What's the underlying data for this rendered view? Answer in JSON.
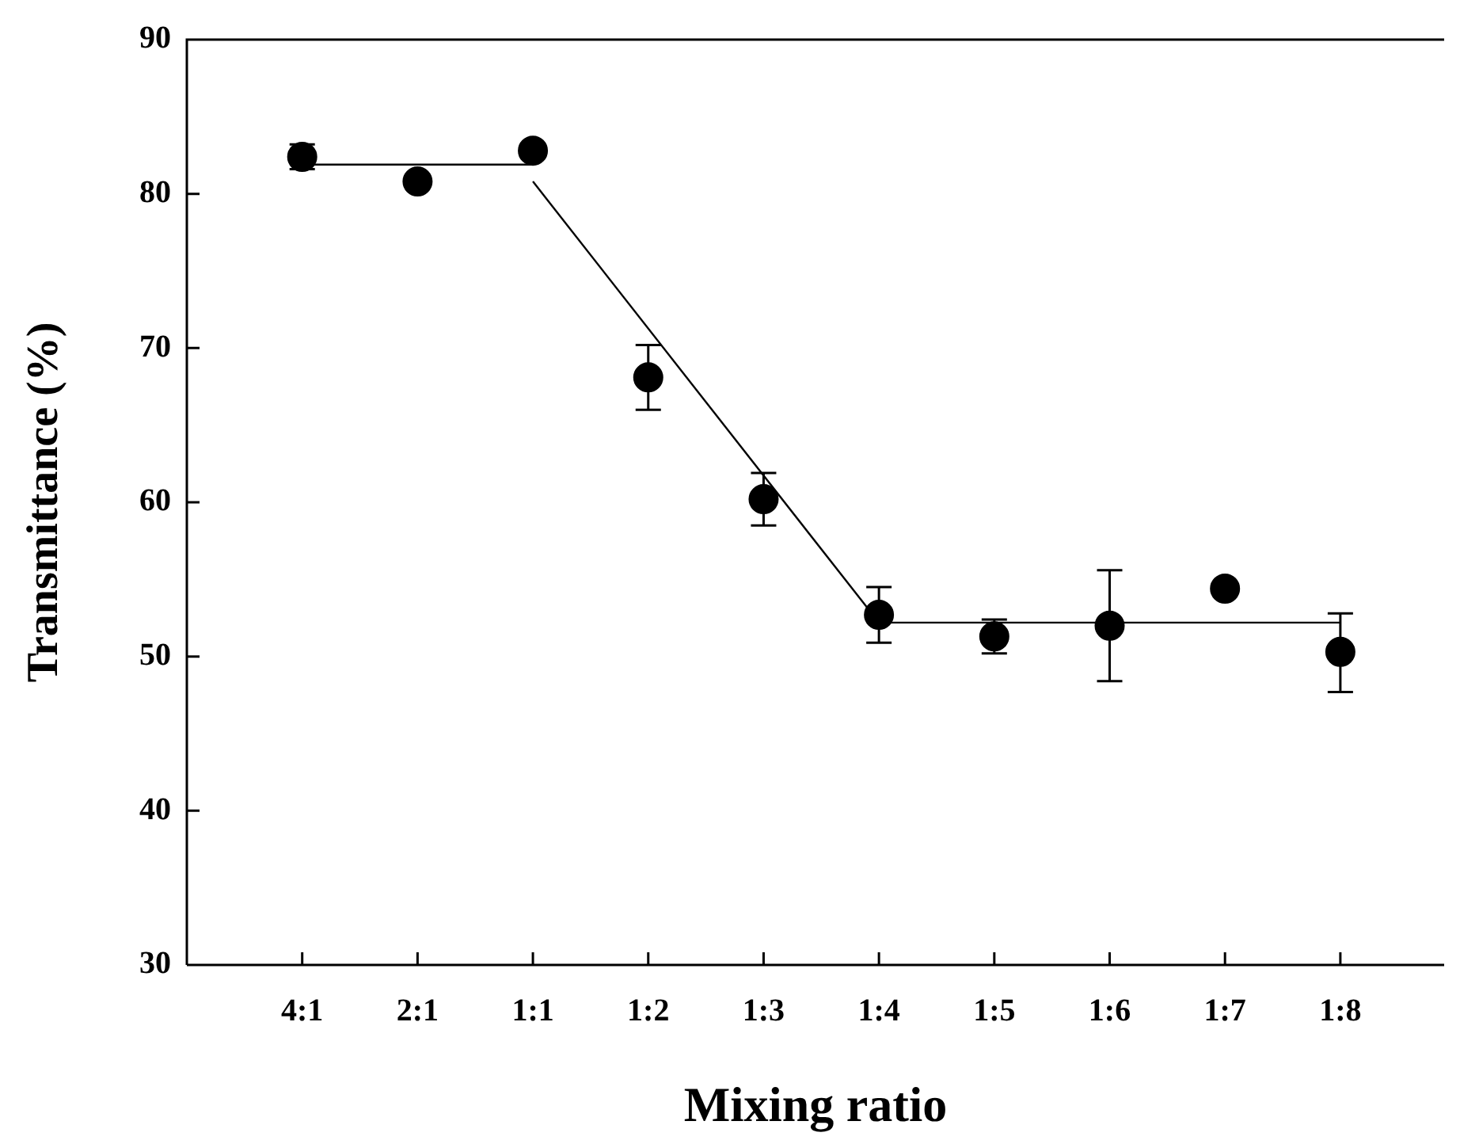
{
  "chart_data": {
    "type": "scatter",
    "xlabel": "Mixing ratio",
    "ylabel": "Transmittance (%)",
    "categories": [
      "4:1",
      "2:1",
      "1:1",
      "1:2",
      "1:3",
      "1:4",
      "1:5",
      "1:6",
      "1:7",
      "1:8"
    ],
    "ylim": [
      30,
      90
    ],
    "yticks": [
      30,
      40,
      50,
      60,
      70,
      80,
      90
    ],
    "grid": false,
    "legend": false,
    "marker": "circle",
    "series": [
      {
        "color": "#000000",
        "values": [
          82.4,
          80.8,
          82.8,
          68.1,
          60.2,
          52.7,
          51.3,
          52.0,
          54.4,
          50.3
        ],
        "errors": [
          [
            81.6,
            83.2
          ],
          null,
          null,
          [
            66.0,
            70.2
          ],
          [
            58.5,
            61.9
          ],
          [
            50.9,
            54.5
          ],
          [
            50.2,
            52.4
          ],
          [
            48.4,
            55.6
          ],
          null,
          [
            47.7,
            52.8
          ]
        ]
      },
      {
        "type": "line",
        "marker": "none",
        "color": "#000000",
        "x": [
          "4:1",
          "1:1"
        ],
        "values": [
          81.9,
          81.9
        ]
      },
      {
        "type": "line",
        "marker": "none",
        "color": "#000000",
        "x": [
          "1:1",
          "1:4"
        ],
        "values": [
          80.8,
          52.2
        ]
      },
      {
        "type": "line",
        "marker": "none",
        "color": "#000000",
        "x": [
          "1:4",
          "1:8"
        ],
        "values": [
          52.2,
          52.2
        ]
      }
    ]
  }
}
